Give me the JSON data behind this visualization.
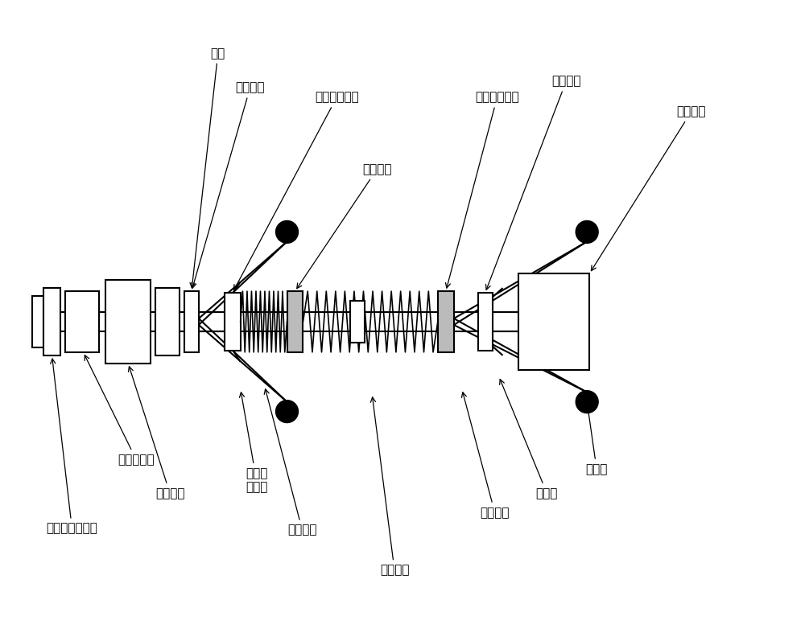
{
  "bg_color": "#ffffff",
  "figsize": [
    10.0,
    7.97
  ],
  "dpi": 100,
  "labels": {
    "zhuzou": "主轴",
    "di_er_dang": "第二挡圈",
    "di_yi_hua_dong": "第一滑动挡圈",
    "di_yi_dang": "第一挡圈",
    "di_er_hua_dong": "第二滑动挡圈",
    "di_san_dang": "第三挡圈",
    "lian_jie_fa_lan": "连接法兰",
    "chuan_gan_qi_di_zuo": "传感器底座",
    "dao_dian_hua_huan": "导电滑环",
    "ji_guang_wei_yi": "激光位移传感器",
    "xuan_zhuan_bu": "旋转步\n进电机",
    "di_yi_tan_huang": "第一弹簧",
    "di_er_tan_huang": "第二弹簧",
    "huo_dong_zhi_gan": "活动支杆",
    "zhi_cheng_gan": "支撑杆",
    "zhi_cheng_lun": "支撑轮"
  }
}
